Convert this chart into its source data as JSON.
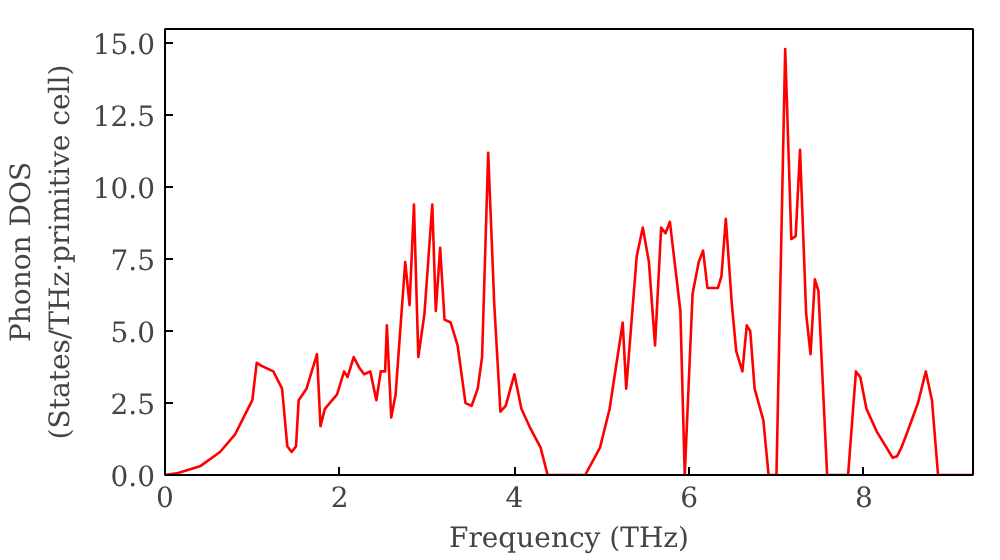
{
  "chart_data": {
    "type": "line",
    "xlabel": "Frequency (THz)",
    "ylabel": "Phonon DOS\n(States/THz·primitive cell)",
    "xlim": [
      0,
      9.25
    ],
    "ylim": [
      0,
      15.5
    ],
    "xticks": [
      0,
      2,
      4,
      6,
      8
    ],
    "yticks": [
      {
        "value": 0,
        "label": "0.0"
      },
      {
        "value": 2.5,
        "label": "2.5"
      },
      {
        "value": 5,
        "label": "5.0"
      },
      {
        "value": 7.5,
        "label": "7.5"
      },
      {
        "value": 10,
        "label": "10.0"
      },
      {
        "value": 12.5,
        "label": "12.5"
      },
      {
        "value": 15,
        "label": "15.0"
      }
    ],
    "grid": false,
    "marker": "none",
    "line_style": "solid",
    "series": [
      {
        "color": "#ff0000",
        "x": [
          0,
          0.15,
          0.4,
          0.63,
          0.8,
          0.9,
          1.0,
          1.05,
          1.1,
          1.24,
          1.34,
          1.4,
          1.45,
          1.5,
          1.53,
          1.62,
          1.74,
          1.78,
          1.83,
          1.97,
          2.05,
          2.09,
          2.16,
          2.23,
          2.28,
          2.35,
          2.42,
          2.47,
          2.52,
          2.54,
          2.59,
          2.64,
          2.75,
          2.8,
          2.85,
          2.9,
          2.97,
          3.06,
          3.1,
          3.15,
          3.2,
          3.27,
          3.35,
          3.44,
          3.51,
          3.58,
          3.63,
          3.7,
          3.77,
          3.84,
          3.9,
          4.0,
          4.08,
          4.17,
          4.3,
          4.38,
          4.81,
          4.98,
          5.09,
          5.24,
          5.28,
          5.4,
          5.47,
          5.54,
          5.61,
          5.68,
          5.73,
          5.78,
          5.9,
          5.95,
          6.04,
          6.11,
          6.16,
          6.21,
          6.33,
          6.37,
          6.42,
          6.49,
          6.54,
          6.61,
          6.66,
          6.7,
          6.75,
          6.85,
          6.91,
          7.0,
          7.1,
          7.17,
          7.22,
          7.27,
          7.34,
          7.39,
          7.44,
          7.48,
          7.58,
          7.82,
          7.91,
          7.96,
          8.03,
          8.15,
          8.26,
          8.33,
          8.38,
          8.43,
          8.5,
          8.62,
          8.71,
          8.78,
          8.85,
          9.25
        ],
        "values": [
          0,
          0.07,
          0.3,
          0.8,
          1.4,
          2.0,
          2.6,
          3.9,
          3.8,
          3.6,
          3.0,
          1.0,
          0.8,
          1.0,
          2.6,
          3.0,
          4.2,
          1.7,
          2.3,
          2.8,
          3.6,
          3.4,
          4.1,
          3.7,
          3.5,
          3.6,
          2.6,
          3.6,
          3.6,
          5.2,
          2.0,
          2.8,
          7.4,
          5.9,
          9.4,
          4.1,
          5.6,
          9.4,
          5.7,
          7.9,
          5.4,
          5.3,
          4.5,
          2.5,
          2.4,
          3.0,
          4.1,
          11.2,
          5.9,
          2.2,
          2.4,
          3.5,
          2.3,
          1.7,
          0.95,
          0,
          0,
          0.95,
          2.3,
          5.3,
          3.0,
          7.6,
          8.6,
          7.4,
          4.5,
          8.6,
          8.4,
          8.8,
          5.7,
          0,
          6.3,
          7.4,
          7.8,
          6.5,
          6.5,
          6.9,
          8.9,
          5.9,
          4.3,
          3.6,
          5.2,
          5.0,
          3.0,
          1.9,
          0,
          0,
          14.8,
          8.2,
          8.3,
          11.3,
          5.6,
          4.2,
          6.8,
          6.4,
          0,
          0,
          3.6,
          3.4,
          2.3,
          1.5,
          0.95,
          0.6,
          0.65,
          0.95,
          1.5,
          2.5,
          3.6,
          2.6,
          0,
          0
        ]
      }
    ]
  }
}
